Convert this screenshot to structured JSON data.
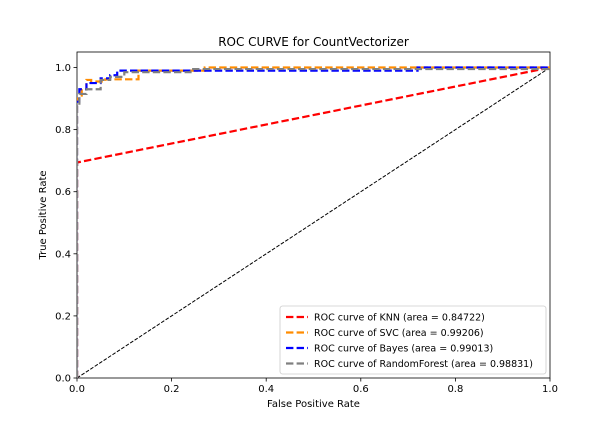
{
  "chart_data": {
    "type": "line",
    "title": "ROC CURVE for CountVectorizer",
    "xlabel": "False Positive Rate",
    "ylabel": "True Positive Rate",
    "xlim": [
      0.0,
      1.0
    ],
    "ylim": [
      0.0,
      1.05
    ],
    "xticks": [
      0.0,
      0.2,
      0.4,
      0.6,
      0.8,
      1.0
    ],
    "yticks": [
      0.0,
      0.2,
      0.4,
      0.6,
      0.8,
      1.0
    ],
    "xtick_labels": [
      "0.0",
      "0.2",
      "0.4",
      "0.6",
      "0.8",
      "1.0"
    ],
    "ytick_labels": [
      "0.0",
      "0.2",
      "0.4",
      "0.6",
      "0.8",
      "1.0"
    ],
    "grid": false,
    "legend_position": "lower-right",
    "series": [
      {
        "name": "ROC curve of KNN (area = 0.84722)",
        "color": "#ff0000",
        "style": "dashed",
        "x": [
          0.0,
          0.0,
          1.0
        ],
        "y": [
          0.0,
          0.694,
          1.0
        ]
      },
      {
        "name": "ROC curve of SVC (area = 0.99206)",
        "color": "#ff8c00",
        "style": "dashed",
        "x": [
          0.0,
          0.0,
          0.005,
          0.005,
          0.01,
          0.01,
          0.02,
          0.02,
          0.03,
          0.03,
          0.06,
          0.06,
          0.13,
          0.13,
          0.27,
          0.27,
          1.0
        ],
        "y": [
          0.0,
          0.9,
          0.9,
          0.91,
          0.91,
          0.93,
          0.93,
          0.96,
          0.96,
          0.955,
          0.955,
          0.962,
          0.962,
          0.99,
          0.99,
          1.0,
          1.0
        ]
      },
      {
        "name": "ROC curve of Bayes (area = 0.99013)",
        "color": "#0000ff",
        "style": "dashed",
        "x": [
          0.0,
          0.0,
          0.005,
          0.005,
          0.02,
          0.02,
          0.05,
          0.05,
          0.07,
          0.07,
          0.085,
          0.085,
          0.72,
          0.72,
          1.0
        ],
        "y": [
          0.0,
          0.89,
          0.89,
          0.93,
          0.93,
          0.95,
          0.95,
          0.965,
          0.965,
          0.975,
          0.975,
          0.99,
          0.99,
          1.0,
          1.0
        ]
      },
      {
        "name": "ROC curve of RandomForest (area = 0.98831)",
        "color": "#808080",
        "style": "dashed",
        "x": [
          0.0,
          0.0,
          0.005,
          0.005,
          0.02,
          0.02,
          0.05,
          0.05,
          0.07,
          0.07,
          0.1,
          0.1,
          0.24,
          0.24,
          1.0
        ],
        "y": [
          0.0,
          0.88,
          0.88,
          0.915,
          0.915,
          0.93,
          0.93,
          0.96,
          0.96,
          0.97,
          0.97,
          0.985,
          0.985,
          0.995,
          0.995
        ]
      }
    ],
    "reference_line": {
      "color": "#000000",
      "style": "dashed",
      "x": [
        0.0,
        1.0
      ],
      "y": [
        0.0,
        1.0
      ]
    }
  }
}
